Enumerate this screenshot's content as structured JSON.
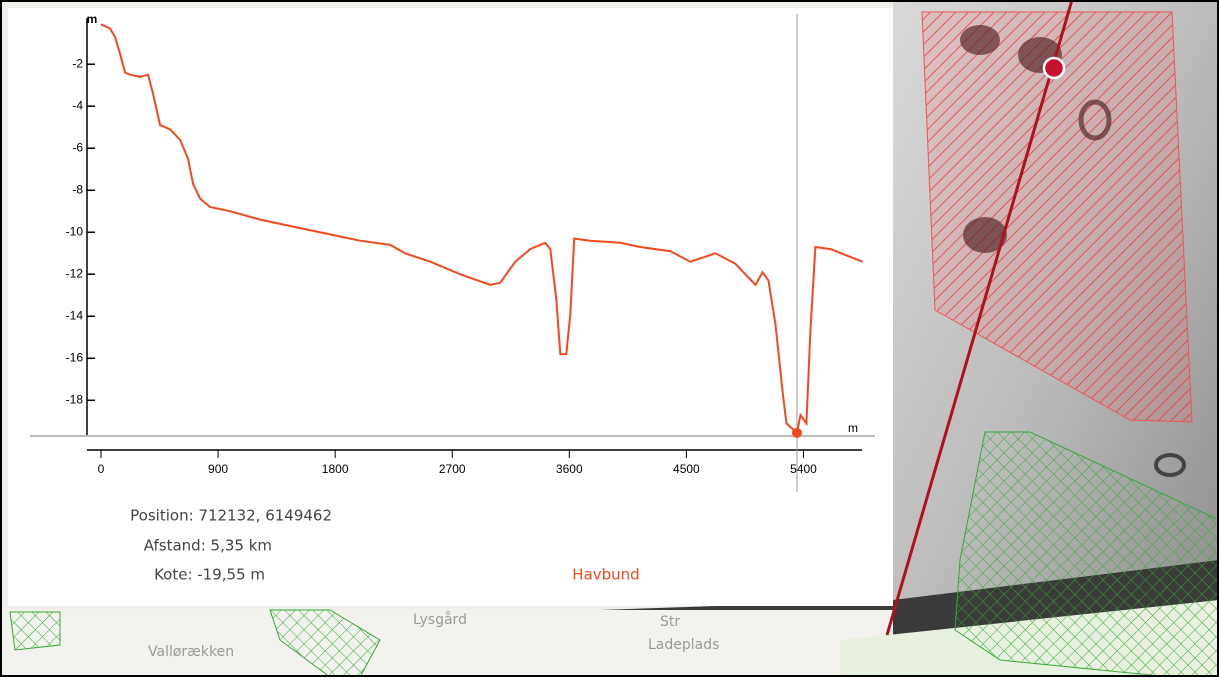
{
  "chart_data": {
    "type": "line",
    "y_label": "m",
    "x_label": "m",
    "x": [
      0,
      69,
      108,
      146,
      185,
      223,
      300,
      362,
      400,
      454,
      531,
      608,
      669,
      708,
      762,
      838,
      992,
      1223,
      1531,
      1838,
      1992,
      2223,
      2338,
      2531,
      2762,
      2992,
      3069,
      3185,
      3300,
      3415,
      3454,
      3500,
      3531,
      3577,
      3608,
      3638,
      3762,
      3992,
      4146,
      4377,
      4531,
      4723,
      4877,
      4954,
      5031,
      5085,
      5131,
      5185,
      5238,
      5269,
      5350,
      5377,
      5423,
      5454,
      5492,
      5608,
      5854
    ],
    "series": [
      {
        "name": "Havbund",
        "color": "#f5481d",
        "values": [
          -0.1,
          -0.3,
          -0.7,
          -1.5,
          -2.4,
          -2.5,
          -2.6,
          -2.5,
          -3.4,
          -4.9,
          -5.1,
          -5.6,
          -6.5,
          -7.7,
          -8.4,
          -8.8,
          -9.0,
          -9.4,
          -9.8,
          -10.2,
          -10.4,
          -10.6,
          -11.0,
          -11.4,
          -12.0,
          -12.5,
          -12.4,
          -11.4,
          -10.8,
          -10.5,
          -10.8,
          -13.2,
          -15.8,
          -15.8,
          -13.9,
          -10.3,
          -10.4,
          -10.5,
          -10.7,
          -10.9,
          -11.4,
          -11.0,
          -11.5,
          -12.0,
          -12.5,
          -11.9,
          -12.3,
          -14.4,
          -17.5,
          -19.1,
          -19.55,
          -18.7,
          -19.1,
          -14.6,
          -10.7,
          -10.8,
          -11.4
        ]
      }
    ],
    "cursor": {
      "x": 5350,
      "y": -19.55
    },
    "xlim": [
      0,
      5950
    ],
    "ylim": [
      -19.7,
      0.2
    ],
    "xticks": [
      0,
      900,
      1800,
      2700,
      3600,
      4500,
      5400
    ],
    "yticks": [
      -2,
      -4,
      -6,
      -8,
      -10,
      -12,
      -14,
      -16,
      -18
    ]
  },
  "info": {
    "position": "Position: 712132, 6149462",
    "distance": "Afstand: 5,35 km",
    "elevation": "Kote: -19,55 m"
  },
  "map_labels": [
    "Vallørækken",
    "Lysgård",
    "Str",
    "Ladeplads"
  ]
}
